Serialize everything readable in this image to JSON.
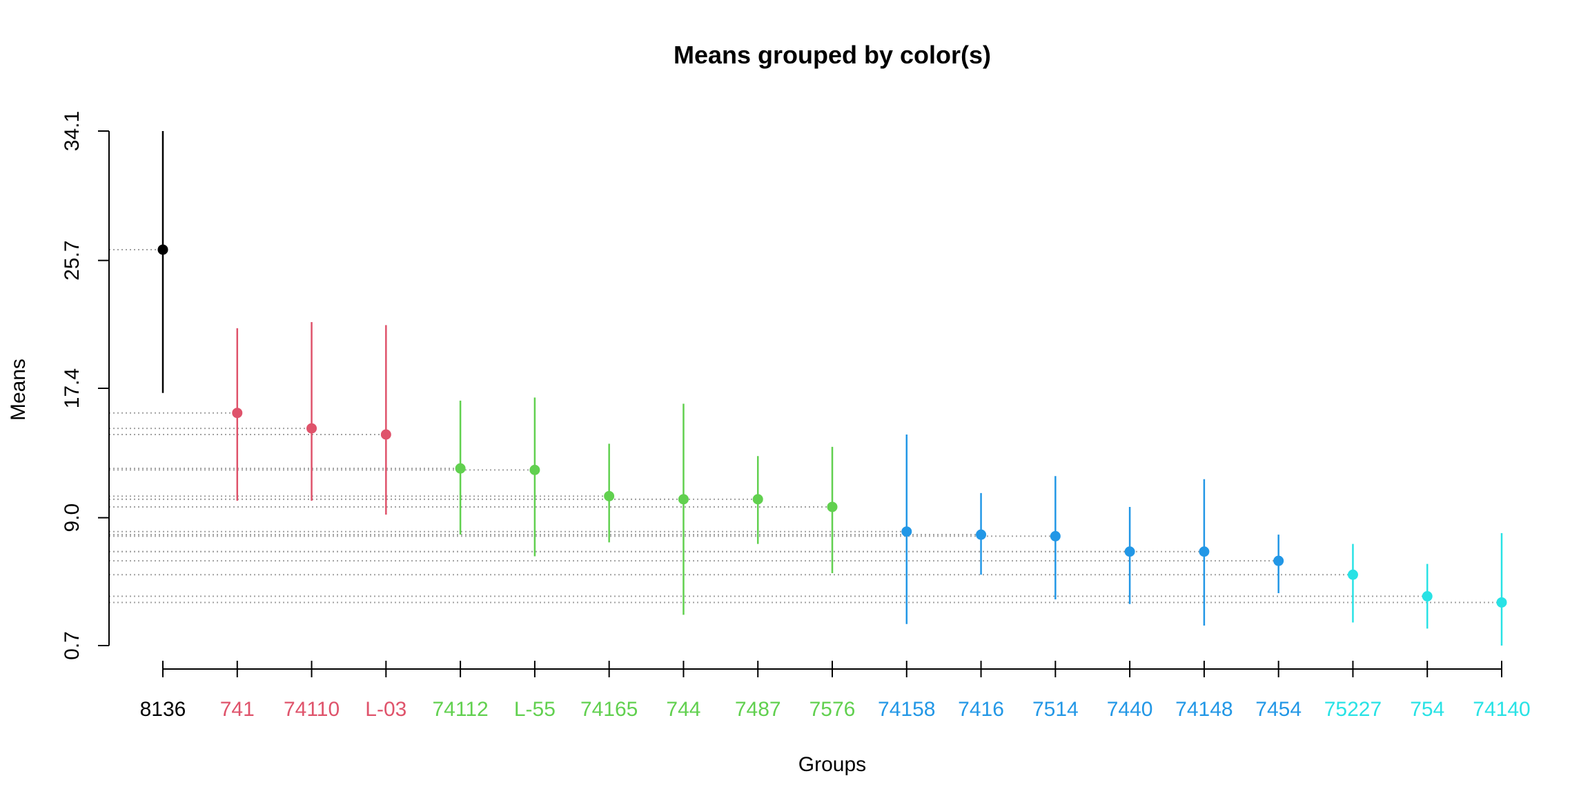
{
  "chart_data": {
    "type": "scatter",
    "title": "Means grouped by color(s)",
    "xlabel": "Groups",
    "ylabel": "Means",
    "ylim": [
      0.7,
      34.1
    ],
    "y_ticks": [
      "0.7",
      "9.0",
      "17.4",
      "25.7",
      "34.1"
    ],
    "y_tick_values": [
      0.7,
      9.0,
      17.4,
      25.7,
      34.1
    ],
    "grid": false,
    "reference_lines": "dotted horizontal line from y-axis to each mean",
    "colors": {
      "black": "#000000",
      "red": "#DF536B",
      "green": "#61D04F",
      "blue": "#2297E6",
      "cyan": "#28E2E5"
    },
    "groups": [
      {
        "label": "8136",
        "mean": 26.4,
        "lower": 17.1,
        "upper": 34.1,
        "color": "#000000"
      },
      {
        "label": "741",
        "mean": 15.8,
        "lower": 10.1,
        "upper": 21.3,
        "color": "#DF536B"
      },
      {
        "label": "74110",
        "mean": 14.8,
        "lower": 10.1,
        "upper": 21.7,
        "color": "#DF536B"
      },
      {
        "label": "L-03",
        "mean": 14.4,
        "lower": 9.2,
        "upper": 21.5,
        "color": "#DF536B"
      },
      {
        "label": "74112",
        "mean": 12.2,
        "lower": 7.9,
        "upper": 16.6,
        "color": "#61D04F"
      },
      {
        "label": "L-55",
        "mean": 12.1,
        "lower": 6.5,
        "upper": 16.8,
        "color": "#61D04F"
      },
      {
        "label": "74165",
        "mean": 10.4,
        "lower": 7.4,
        "upper": 13.8,
        "color": "#61D04F"
      },
      {
        "label": "744",
        "mean": 10.2,
        "lower": 2.7,
        "upper": 16.4,
        "color": "#61D04F"
      },
      {
        "label": "7487",
        "mean": 10.2,
        "lower": 7.3,
        "upper": 13.0,
        "color": "#61D04F"
      },
      {
        "label": "7576",
        "mean": 9.7,
        "lower": 5.4,
        "upper": 13.6,
        "color": "#61D04F"
      },
      {
        "label": "74158",
        "mean": 8.1,
        "lower": 2.1,
        "upper": 14.4,
        "color": "#2297E6"
      },
      {
        "label": "7416",
        "mean": 7.9,
        "lower": 5.3,
        "upper": 10.6,
        "color": "#2297E6"
      },
      {
        "label": "7514",
        "mean": 7.8,
        "lower": 3.7,
        "upper": 11.7,
        "color": "#2297E6"
      },
      {
        "label": "7440",
        "mean": 6.8,
        "lower": 3.4,
        "upper": 9.7,
        "color": "#2297E6"
      },
      {
        "label": "74148",
        "mean": 6.8,
        "lower": 2.0,
        "upper": 11.5,
        "color": "#2297E6"
      },
      {
        "label": "7454",
        "mean": 6.2,
        "lower": 4.1,
        "upper": 7.9,
        "color": "#2297E6"
      },
      {
        "label": "75227",
        "mean": 5.3,
        "lower": 2.2,
        "upper": 7.3,
        "color": "#28E2E5"
      },
      {
        "label": "754",
        "mean": 3.9,
        "lower": 1.8,
        "upper": 6.0,
        "color": "#28E2E5"
      },
      {
        "label": "74140",
        "mean": 3.5,
        "lower": 0.7,
        "upper": 8.0,
        "color": "#28E2E5"
      }
    ]
  }
}
